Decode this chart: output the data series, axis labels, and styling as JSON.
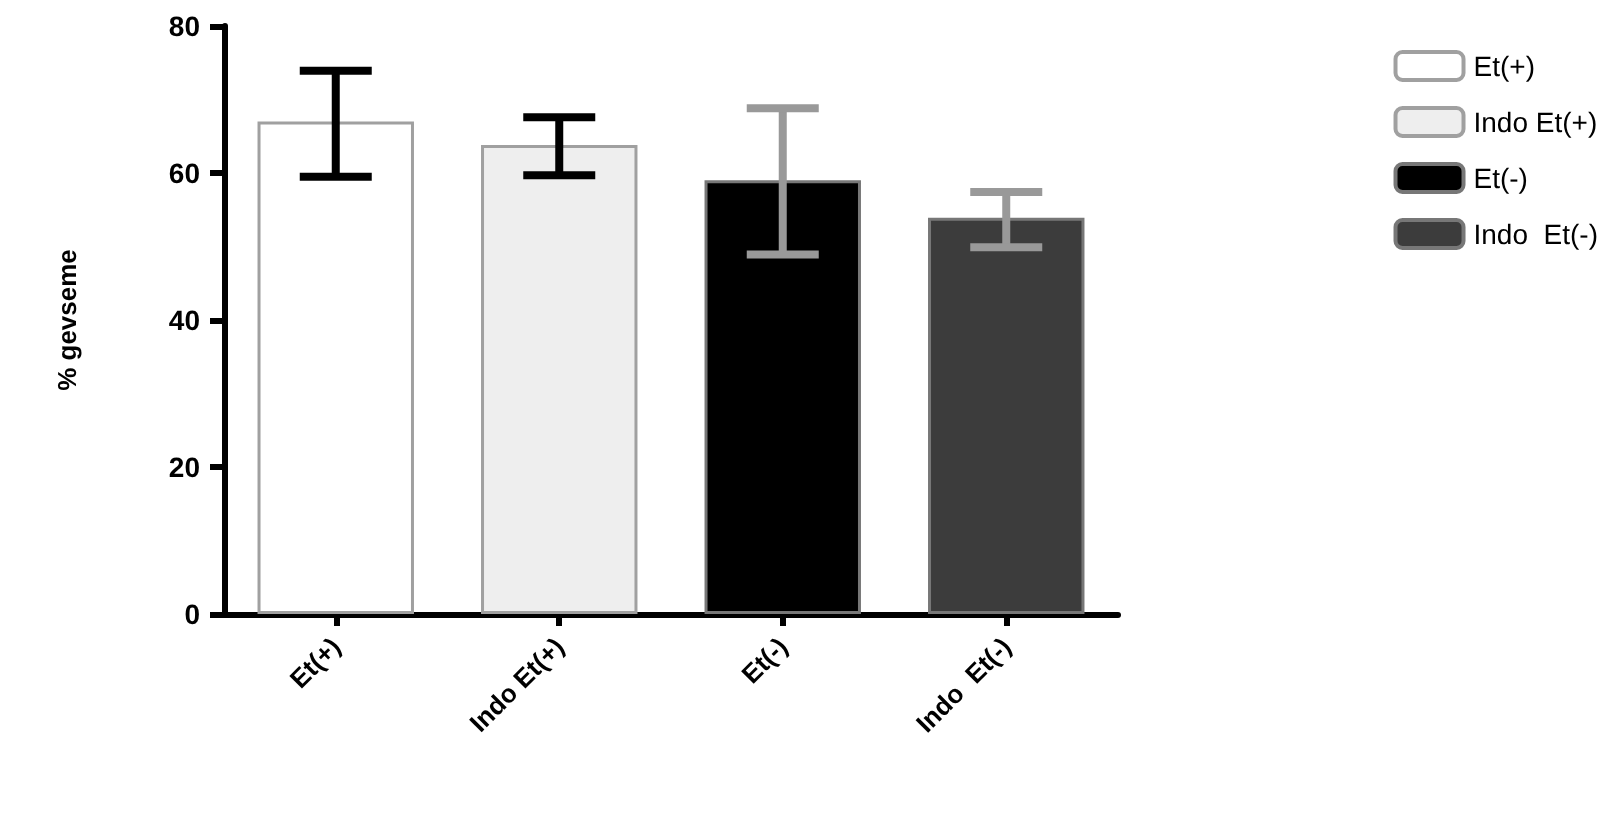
{
  "chart_data": {
    "type": "bar",
    "ylabel": "% gevseme",
    "categories": [
      "Et(+)",
      "Indo Et(+)",
      "Et(-)",
      "Indo  Et(-)"
    ],
    "series": [
      {
        "name": "Et(+)",
        "color": "#ffffff",
        "values": [
          67,
          null,
          null,
          null
        ],
        "errors": [
          [
            59.5,
            73.9
          ],
          null,
          null,
          null
        ]
      },
      {
        "name": "Indo Et(+)",
        "color": "#eeeeee",
        "values": [
          null,
          63.8,
          null,
          null
        ],
        "errors": [
          null,
          [
            59.7,
            67.6
          ],
          null,
          null
        ]
      },
      {
        "name": "Et(-)",
        "color": "#000000",
        "values": [
          null,
          null,
          59,
          null
        ],
        "errors": [
          null,
          null,
          [
            48.9,
            68.8
          ],
          null
        ]
      },
      {
        "name": "Indo  Et(-)",
        "color": "#3c3c3c",
        "values": [
          null,
          null,
          null,
          53.9
        ],
        "errors": [
          null,
          null,
          null,
          [
            49.9,
            57.4
          ]
        ]
      }
    ],
    "ylim": [
      0,
      80
    ],
    "yticks": [
      0,
      20,
      40,
      60,
      80
    ],
    "grid": false,
    "legend": "top right"
  }
}
